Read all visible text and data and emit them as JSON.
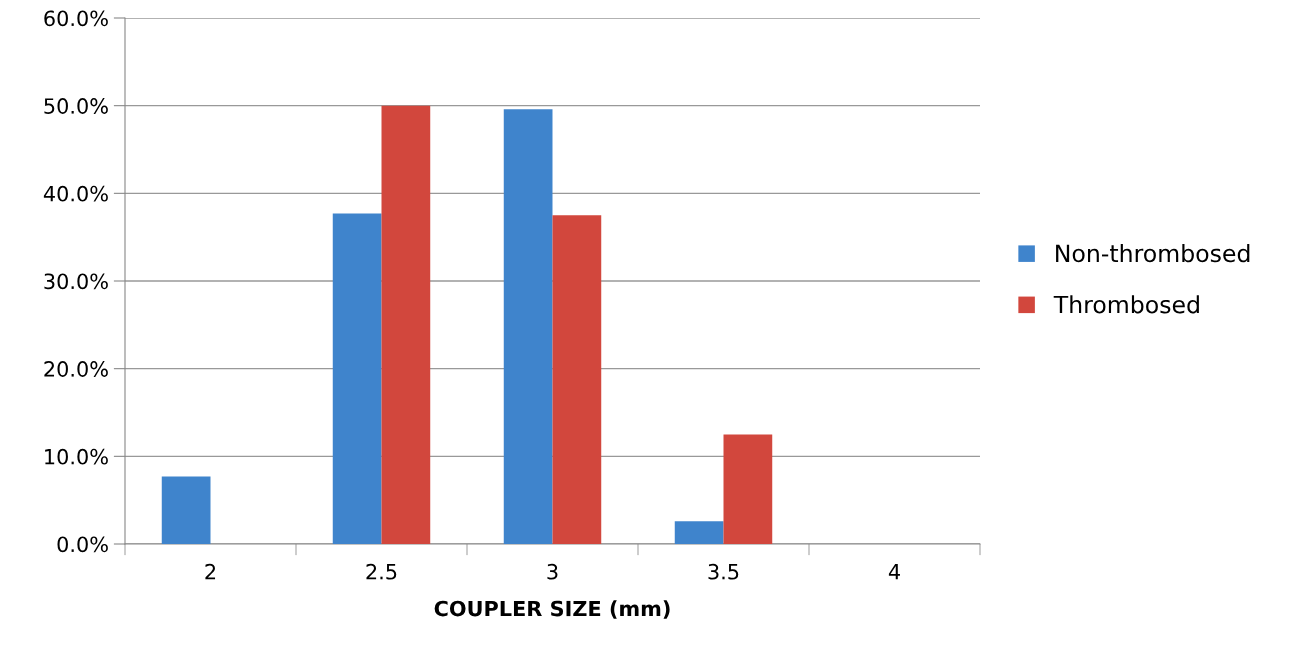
{
  "chart_data": {
    "type": "bar",
    "xlabel": "COUPLER SIZE (mm)",
    "categories": [
      "2",
      "2.5",
      "3",
      "3.5",
      "4"
    ],
    "series": [
      {
        "name": "Non-thrombosed",
        "color": "#3f84cc",
        "values": [
          7.7,
          37.7,
          49.6,
          2.6,
          0
        ]
      },
      {
        "name": "Thrombosed",
        "color": "#d2473d",
        "values": [
          0,
          50.0,
          37.5,
          12.5,
          0
        ]
      }
    ],
    "ylim": [
      0,
      60
    ],
    "yticks": [
      {
        "value": 0,
        "label": "0.0%"
      },
      {
        "value": 10,
        "label": "10.0%"
      },
      {
        "value": 20,
        "label": "20.0%"
      },
      {
        "value": 30,
        "label": "30.0%"
      },
      {
        "value": 40,
        "label": "40.0%"
      },
      {
        "value": 50,
        "label": "50.0%"
      },
      {
        "value": 60,
        "label": "60.0%"
      }
    ],
    "grid": "y",
    "legend": "right"
  }
}
